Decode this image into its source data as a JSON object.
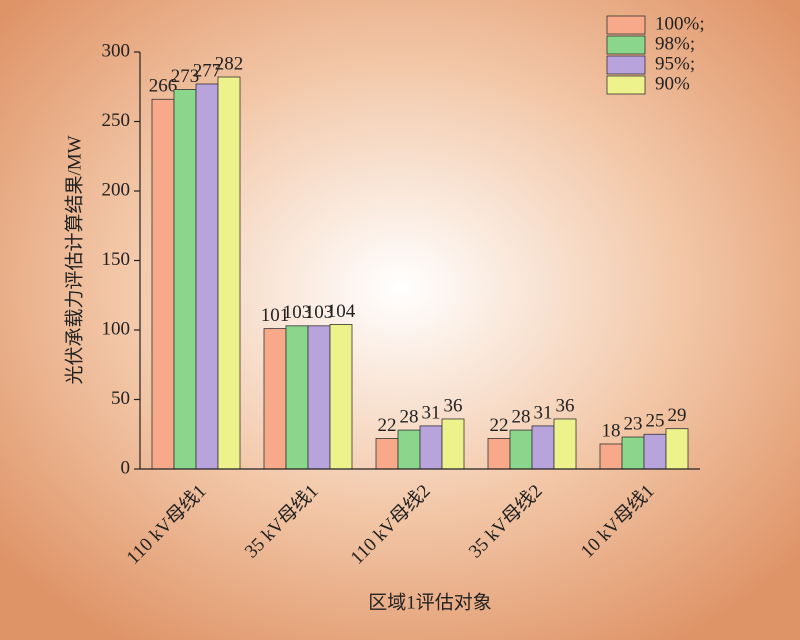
{
  "chart_data": {
    "type": "bar",
    "categories": [
      "110 kV母线1",
      "35 kV母线1",
      "110 kV母线2",
      "35 kV母线2",
      "10 kV母线1"
    ],
    "series": [
      {
        "name": "100%;",
        "color": "#f7a98a",
        "values": [
          266,
          101,
          22,
          22,
          18
        ]
      },
      {
        "name": "98%;",
        "color": "#8ad68c",
        "values": [
          273,
          103,
          28,
          28,
          23
        ]
      },
      {
        "name": "95%;",
        "color": "#b9a3dd",
        "values": [
          277,
          103,
          31,
          31,
          25
        ]
      },
      {
        "name": "90%",
        "color": "#eef28c",
        "values": [
          282,
          104,
          36,
          36,
          29
        ]
      }
    ],
    "ylabel": "光伏承载力评估计算结果/MW",
    "xlabel": "区域1评估对象",
    "ylim": [
      0,
      300
    ],
    "yticks": [
      0,
      50,
      100,
      150,
      200,
      250,
      300
    ],
    "legend": "top-right"
  }
}
